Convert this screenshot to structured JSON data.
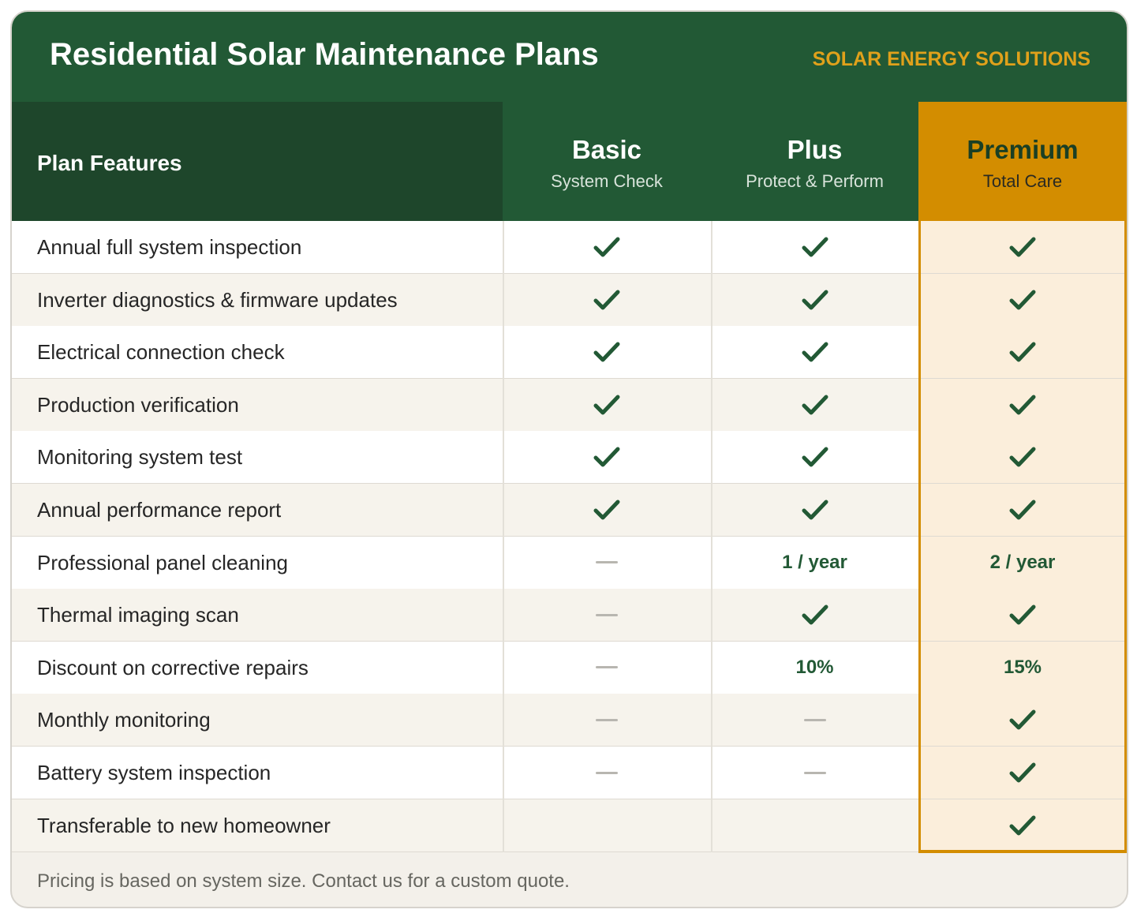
{
  "header": {
    "title": "Residential Solar Maintenance Plans",
    "brand": "SOLAR ENERGY SOLUTIONS"
  },
  "table": {
    "feature_header": "Plan Features",
    "plans": [
      {
        "name": "Basic",
        "tagline": "System Check"
      },
      {
        "name": "Plus",
        "tagline": "Protect & Perform"
      },
      {
        "name": "Premium",
        "tagline": "Total Care"
      }
    ],
    "rows": [
      {
        "feature": "Annual full system inspection",
        "cells": [
          "check",
          "check",
          "check"
        ]
      },
      {
        "feature": "Inverter diagnostics & firmware updates",
        "cells": [
          "check",
          "check",
          "check"
        ]
      },
      {
        "feature": "Electrical connection check",
        "cells": [
          "check",
          "check",
          "check"
        ]
      },
      {
        "feature": "Production verification",
        "cells": [
          "check",
          "check",
          "check"
        ]
      },
      {
        "feature": "Monitoring system test",
        "cells": [
          "check",
          "check",
          "check"
        ]
      },
      {
        "feature": "Annual performance report",
        "cells": [
          "check",
          "check",
          "check"
        ]
      },
      {
        "feature": "Professional panel cleaning",
        "cells": [
          "dash",
          "1 / year",
          "2 / year"
        ]
      },
      {
        "feature": "Thermal imaging scan",
        "cells": [
          "dash",
          "check",
          "check"
        ]
      },
      {
        "feature": "Discount on corrective repairs",
        "cells": [
          "dash",
          "10%",
          "15%"
        ]
      },
      {
        "feature": "Monthly monitoring",
        "cells": [
          "dash",
          "dash",
          "check"
        ]
      },
      {
        "feature": "Battery system inspection",
        "cells": [
          "dash",
          "dash",
          "check"
        ]
      },
      {
        "feature": "Transferable to new homeowner",
        "cells": [
          "empty",
          "empty",
          "check"
        ]
      }
    ]
  },
  "footer": {
    "note": "Pricing is based on system size. Contact us for a custom quote."
  },
  "icons": {
    "included": "check-icon",
    "not_included": "dash-icon"
  },
  "colors": {
    "header_green": "#225935",
    "dark_green": "#1e462b",
    "premium_gold": "#d38d00",
    "brand_gold": "#e0a11b",
    "premium_tint": "#fbeedb"
  }
}
